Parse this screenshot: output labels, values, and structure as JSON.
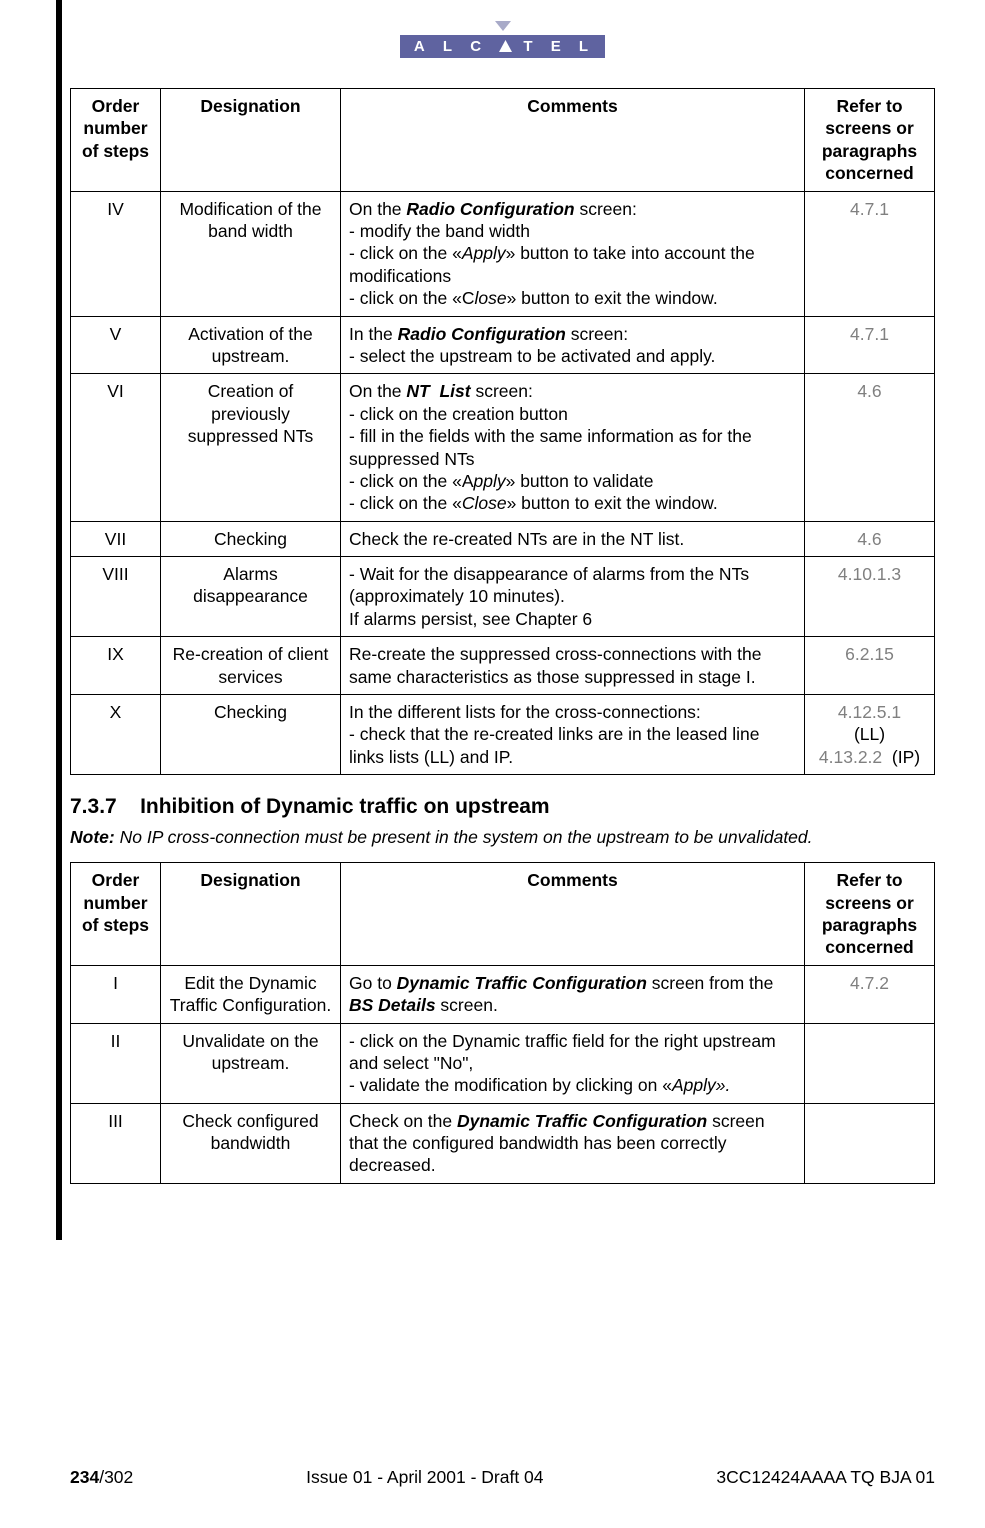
{
  "brand": {
    "name": "ALCATEL",
    "bg": "#5f63a0",
    "fg": "#ffffff"
  },
  "tables": {
    "headers": {
      "step": "Order number of steps",
      "designation": "Designation",
      "comments": "Comments",
      "ref": "Refer to screens or paragraphs concerned"
    },
    "t1": {
      "rows": [
        {
          "step": "IV",
          "designation": "Modification of the band width",
          "comments_html": "On the <b class='bi'>Radio Configuration</b> screen:<br>- modify the band width<br>- click on the «<em class='i'>Apply</em>» button to take into account the modifications<br>- click on the «C<em class='i'>lose</em>» button to exit the window.",
          "ref": "4.7.1"
        },
        {
          "step": "V",
          "designation": "Activation of the upstream.",
          "comments_html": "In the <b class='bi'>Radio Configuration</b> screen:<br>- select the upstream to be activated and apply.",
          "ref": "4.7.1"
        },
        {
          "step": "VI",
          "designation": "Creation of previously suppressed NTs",
          "comments_html": "On the <b class='bi'>NT&nbsp; List</b> screen:<br>- click on the creation button<br>- fill in the fields with the same information as for the suppressed NTs<br>- click on the «A<em class='i'>pply</em>» button to validate<br>- click on the «<em class='i'>Close</em>» button to exit the window.",
          "ref": "4.6"
        },
        {
          "step": "VII",
          "designation": "Checking",
          "comments_html": "Check the re-created NTs are in the NT list.",
          "ref": "4.6"
        },
        {
          "step": "VIII",
          "designation": "Alarms disappearance",
          "comments_html": "- Wait for the disappearance of alarms from the NTs (approximately 10 minutes).<br>If alarms persist, see Chapter 6",
          "ref": "4.10.1.3"
        },
        {
          "step": "IX",
          "designation": "Re-creation of client services",
          "comments_html": "Re-create the suppressed cross-connections with the same characteristics as those suppressed in stage I.",
          "ref": "6.2.15"
        },
        {
          "step": "X",
          "designation": "Checking",
          "comments_html": "In the different lists for the cross-connections:<br>- check that the re-created links are in the leased line links lists (LL) and IP.",
          "ref_html": "<span class='grey'>4.12.5.1</span><br>(LL)<br><span class='grey'>4.13.2.2</span>&nbsp; (IP)"
        }
      ]
    },
    "t2": {
      "rows": [
        {
          "step": "I",
          "designation": "Edit the Dynamic Traffic Configuration.",
          "comments_html": "Go to <b class='bi'>Dynamic Traffic Configuration</b> screen from the <b class='bi'>BS Details</b> screen.",
          "ref": "4.7.2"
        },
        {
          "step": "II",
          "designation": "Unvalidate on the upstream.",
          "comments_html": "- click on the Dynamic traffic field for the right upstream and select &quot;No&quot;,<br>- validate the modification by clicking on «<em class='i'>Apply».</em>",
          "ref": ""
        },
        {
          "step": "III",
          "designation": "Check configured bandwidth",
          "comments_html": "Check on the <b class='bi'>Dynamic Traffic Configuration</b> screen that the configured bandwidth has been correctly decreased.",
          "ref": ""
        }
      ]
    }
  },
  "section": {
    "num": "7.3.7",
    "title": "Inhibition of Dynamic traffic on upstream"
  },
  "note": {
    "label": "Note:",
    "text": "No IP cross-connection must be present in the system on the upstream to be unvalidated."
  },
  "footer": {
    "page_cur": "234",
    "page_tot": "/302",
    "center": "Issue 01 - April 2001 - Draft 04",
    "right": "3CC12424AAAA TQ BJA 01"
  },
  "style": {
    "grey": "#808080",
    "border": "#000000",
    "font_body": 17.5
  }
}
